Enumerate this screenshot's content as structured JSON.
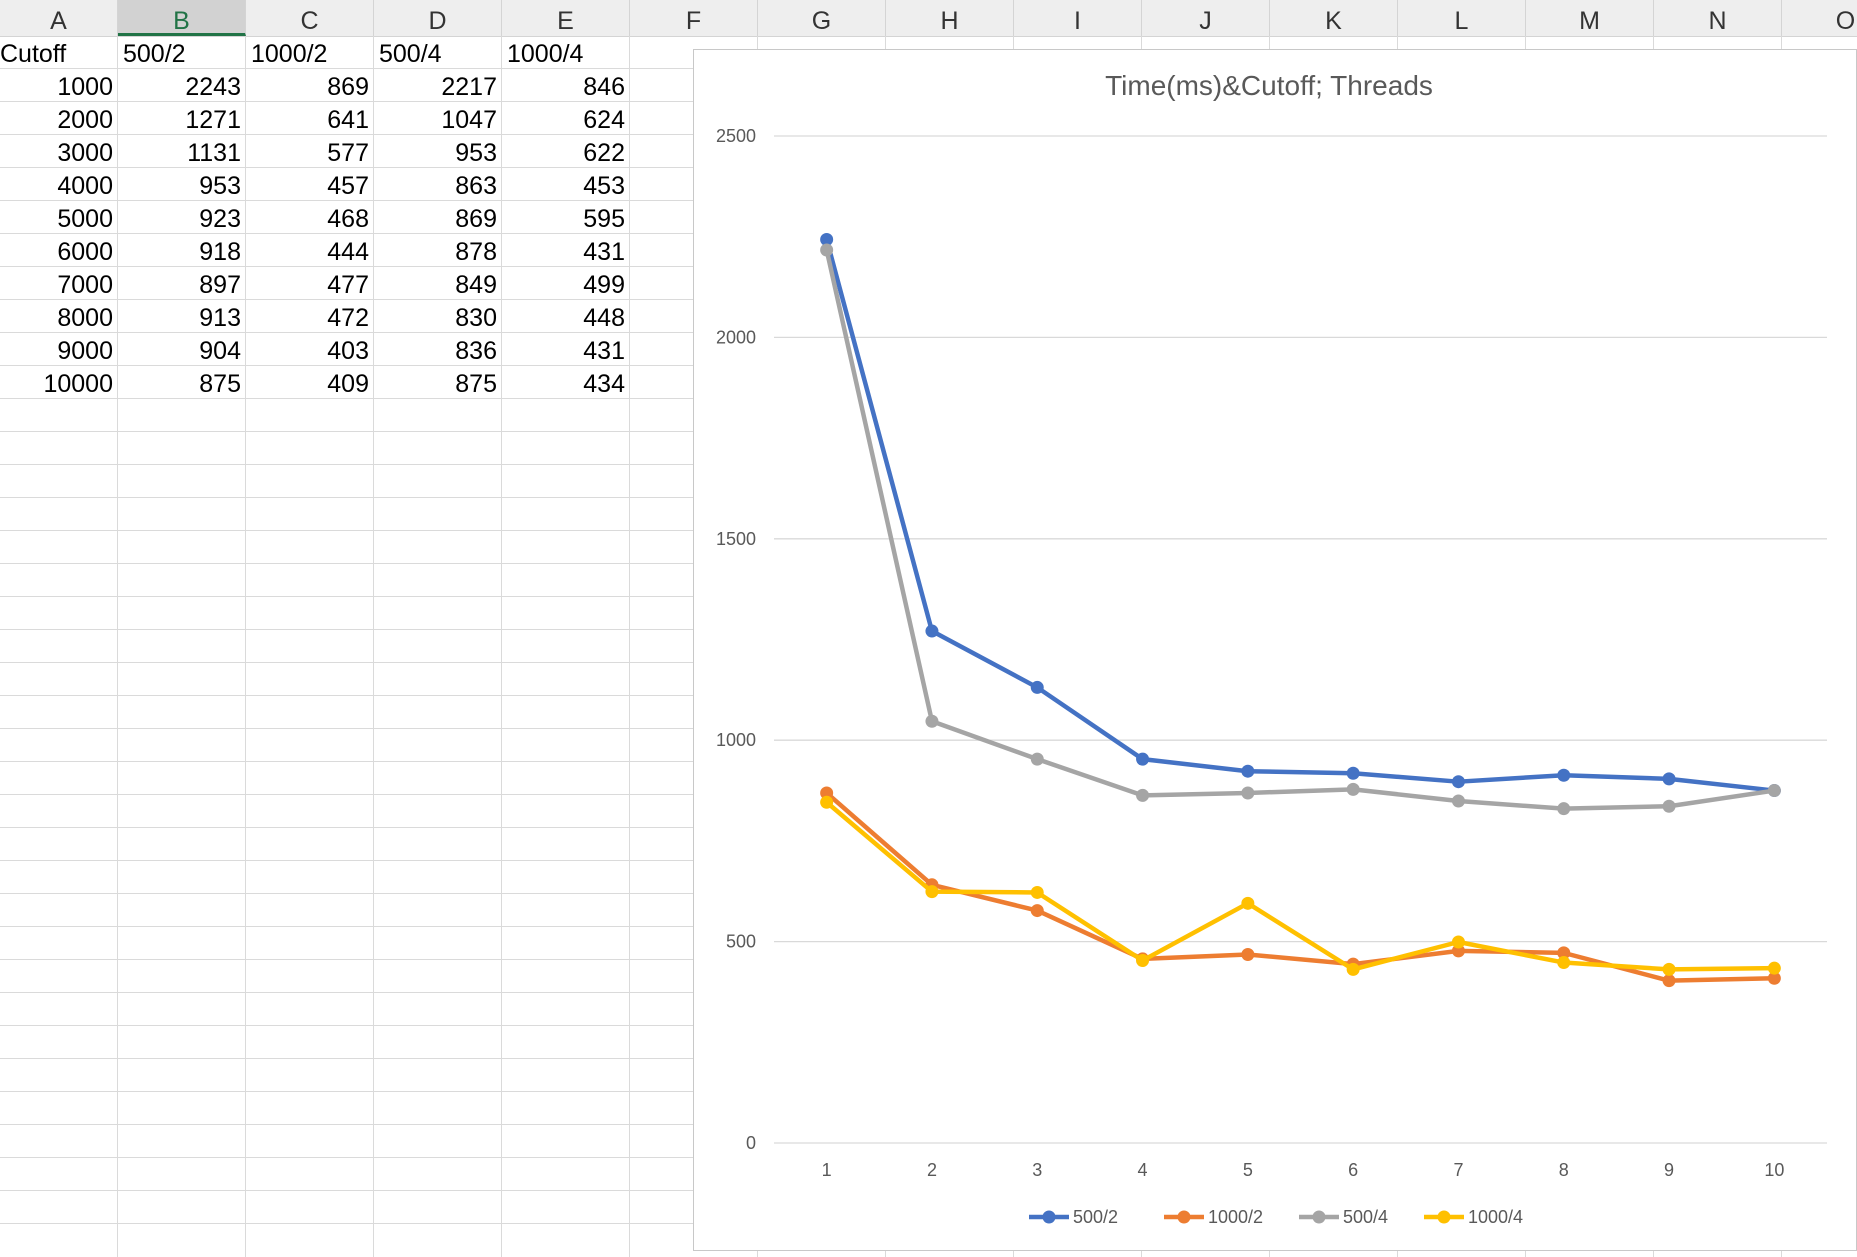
{
  "columns": [
    "A",
    "B",
    "C",
    "D",
    "E",
    "F",
    "G",
    "H",
    "I",
    "J",
    "K",
    "L",
    "M",
    "N",
    "O"
  ],
  "selected_column": "B",
  "table": {
    "headers": [
      "Cutoff",
      "500/2",
      "1000/2",
      "500/4",
      "1000/4"
    ],
    "rows": [
      [
        "1000",
        "2243",
        "869",
        "2217",
        "846"
      ],
      [
        "2000",
        "1271",
        "641",
        "1047",
        "624"
      ],
      [
        "3000",
        "1131",
        "577",
        "953",
        "622"
      ],
      [
        "4000",
        "953",
        "457",
        "863",
        "453"
      ],
      [
        "5000",
        "923",
        "468",
        "869",
        "595"
      ],
      [
        "6000",
        "918",
        "444",
        "878",
        "431"
      ],
      [
        "7000",
        "897",
        "477",
        "849",
        "499"
      ],
      [
        "8000",
        "913",
        "472",
        "830",
        "448"
      ],
      [
        "9000",
        "904",
        "403",
        "836",
        "431"
      ],
      [
        "10000",
        "875",
        "409",
        "875",
        "434"
      ]
    ]
  },
  "chart_data": {
    "type": "line",
    "title": "Time(ms)&Cutoff; Threads",
    "xlabel": "",
    "ylabel": "",
    "categories": [
      "1",
      "2",
      "3",
      "4",
      "5",
      "6",
      "7",
      "8",
      "9",
      "10"
    ],
    "ylim": [
      0,
      2500
    ],
    "yticks": [
      "0",
      "500",
      "1000",
      "1500",
      "2000",
      "2500"
    ],
    "grid": true,
    "legend_position": "bottom",
    "series": [
      {
        "name": "500/2",
        "color": "#4472C4",
        "values": [
          2243,
          1271,
          1131,
          953,
          923,
          918,
          897,
          913,
          904,
          875
        ]
      },
      {
        "name": "1000/2",
        "color": "#ED7D31",
        "values": [
          869,
          641,
          577,
          457,
          468,
          444,
          477,
          472,
          403,
          409
        ]
      },
      {
        "name": "500/4",
        "color": "#A5A5A5",
        "values": [
          2217,
          1047,
          953,
          863,
          869,
          878,
          849,
          830,
          836,
          875
        ]
      },
      {
        "name": "1000/4",
        "color": "#FFC000",
        "values": [
          846,
          624,
          622,
          453,
          595,
          431,
          499,
          448,
          431,
          434
        ]
      }
    ]
  }
}
